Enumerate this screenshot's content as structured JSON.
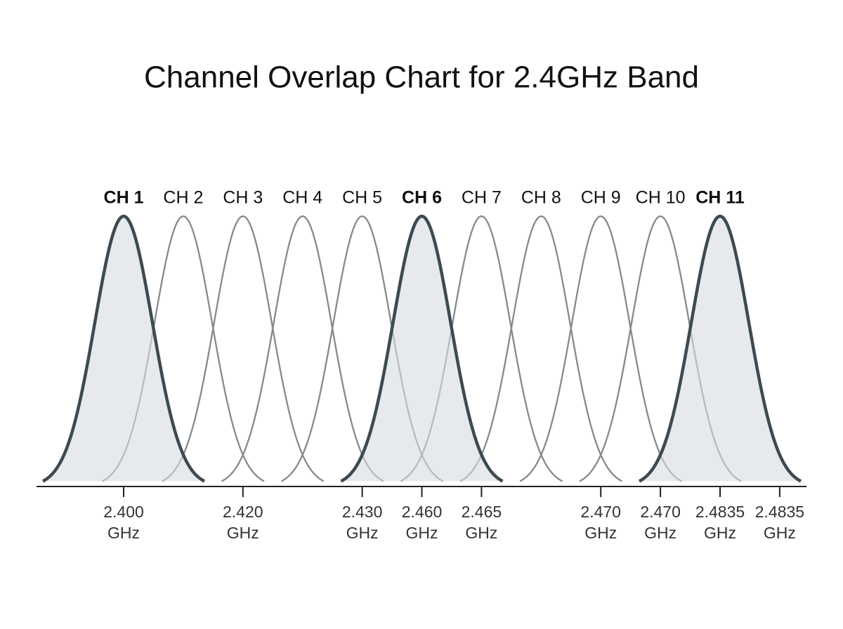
{
  "title": "Channel Overlap Chart for 2.4GHz Band",
  "channels": [
    {
      "label": "CH 1",
      "highlighted": true
    },
    {
      "label": "CH 2",
      "highlighted": false
    },
    {
      "label": "CH 3",
      "highlighted": false
    },
    {
      "label": "CH 4",
      "highlighted": false
    },
    {
      "label": "CH 5",
      "highlighted": false
    },
    {
      "label": "CH 6",
      "highlighted": true
    },
    {
      "label": "CH 7",
      "highlighted": false
    },
    {
      "label": "CH 8",
      "highlighted": false
    },
    {
      "label": "CH 9",
      "highlighted": false
    },
    {
      "label": "CH 10",
      "highlighted": false
    },
    {
      "label": "CH 11",
      "highlighted": true
    }
  ],
  "axis_labels": [
    [
      "2.400",
      "GHz"
    ],
    null,
    [
      "2.420",
      "GHz"
    ],
    null,
    [
      "2.430",
      "GHz"
    ],
    [
      "2.460",
      "GHz"
    ],
    [
      "2.465",
      "GHz"
    ],
    null,
    [
      "2.470",
      "GHz"
    ],
    [
      "2.470",
      "GHz"
    ],
    [
      "2.4835",
      "GHz"
    ],
    [
      "2.4835",
      "GHz"
    ]
  ]
}
